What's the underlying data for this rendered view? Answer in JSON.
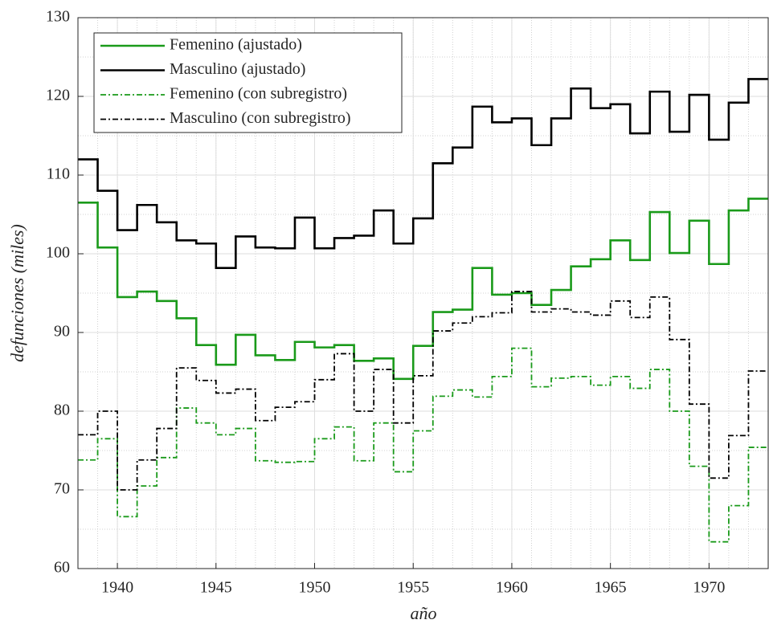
{
  "chart_data": {
    "type": "step",
    "xlabel": "año",
    "ylabel": "defunciones (miles)",
    "x": [
      1938,
      1939,
      1940,
      1941,
      1942,
      1943,
      1944,
      1945,
      1946,
      1947,
      1948,
      1949,
      1950,
      1951,
      1952,
      1953,
      1954,
      1955,
      1956,
      1957,
      1958,
      1959,
      1960,
      1961,
      1962,
      1963,
      1964,
      1965,
      1966,
      1967,
      1968,
      1969,
      1970,
      1971,
      1972
    ],
    "series": [
      {
        "name": "Femenino (ajustado)",
        "color": "#1a9a1a",
        "linestyle": "solid",
        "values": [
          106.5,
          100.8,
          94.5,
          95.2,
          94,
          91.8,
          88.4,
          85.9,
          89.7,
          87.1,
          86.5,
          88.8,
          88.1,
          88.4,
          86.4,
          86.7,
          84.1,
          88.3,
          92.6,
          92.9,
          98.2,
          94.8,
          95,
          93.5,
          95.4,
          98.4,
          99.3,
          101.7,
          99.2,
          105.3,
          100.1,
          104.2,
          98.7,
          105.5,
          107
        ]
      },
      {
        "name": "Masculino (ajustado)",
        "color": "#000000",
        "linestyle": "solid",
        "values": [
          112,
          108,
          103,
          106.2,
          104,
          101.7,
          101.3,
          98.2,
          102.2,
          100.8,
          100.7,
          104.6,
          100.7,
          102,
          102.3,
          105.5,
          101.3,
          104.5,
          111.5,
          113.5,
          118.7,
          116.7,
          117.2,
          113.8,
          117.2,
          121,
          118.5,
          119,
          115.3,
          120.6,
          115.5,
          120.2,
          114.5,
          119.2,
          122.2
        ]
      },
      {
        "name": "Femenino (con subregistro)",
        "color": "#1a9a1a",
        "linestyle": "dashdot",
        "values": [
          73.8,
          76.5,
          66.6,
          70.5,
          74.1,
          80.4,
          78.5,
          77,
          77.8,
          73.7,
          73.5,
          73.6,
          76.5,
          78,
          73.7,
          78.5,
          72.3,
          77.5,
          81.9,
          82.7,
          81.8,
          84.4,
          88,
          83.1,
          84.2,
          84.4,
          83.3,
          84.4,
          82.9,
          85.3,
          80,
          73,
          63.4,
          68,
          75.4
        ]
      },
      {
        "name": "Masculino (con subregistro)",
        "color": "#000000",
        "linestyle": "dashdot",
        "values": [
          77,
          80,
          70,
          73.8,
          77.8,
          85.5,
          83.9,
          82.3,
          82.8,
          78.8,
          80.5,
          81.2,
          84,
          87.3,
          80,
          85.3,
          78.5,
          84.5,
          90.2,
          91.2,
          92,
          92.5,
          95.2,
          92.6,
          93,
          92.6,
          92.2,
          94,
          91.9,
          94.5,
          89.1,
          80.9,
          71.5,
          76.9,
          85.1
        ]
      }
    ],
    "xlim": [
      1938,
      1973
    ],
    "ylim": [
      60,
      130
    ],
    "xticks": [
      1940,
      1945,
      1950,
      1955,
      1960,
      1965,
      1970
    ],
    "yticks": [
      60,
      70,
      80,
      90,
      100,
      110,
      120,
      130
    ],
    "grid": true,
    "minor_grid": true,
    "legend": "upper left"
  }
}
